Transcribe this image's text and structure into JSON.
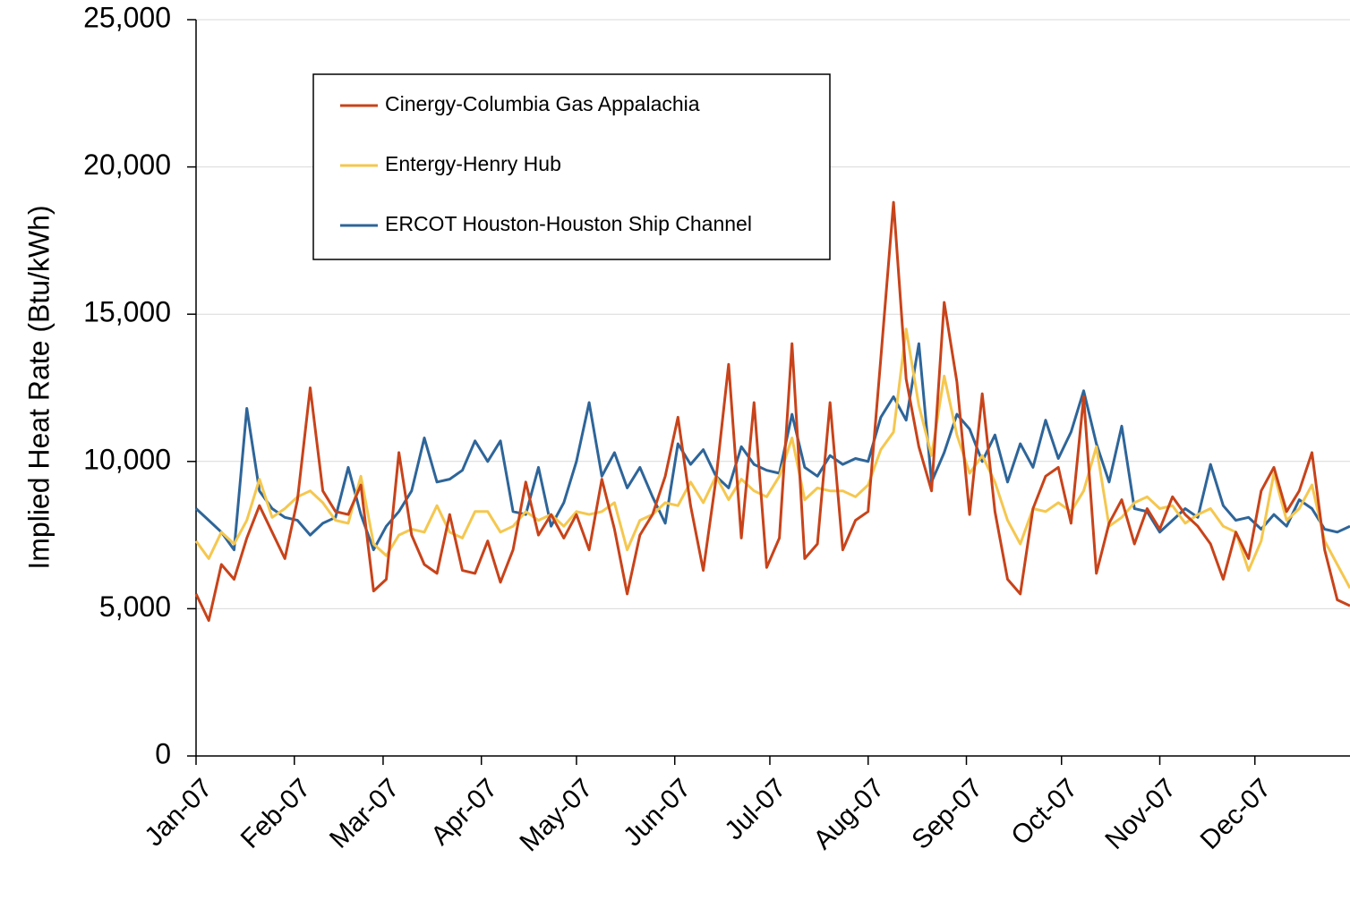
{
  "chart_data": {
    "type": "line",
    "y_label": "Implied Heat Rate (Btu/kWh)",
    "x": [
      0,
      4,
      8,
      12,
      16,
      20,
      24,
      28,
      32,
      36,
      40,
      44,
      48,
      52,
      56,
      60,
      64,
      68,
      72,
      76,
      80,
      84,
      88,
      92,
      96,
      100,
      104,
      108,
      112,
      116,
      120,
      124,
      128,
      132,
      136,
      140,
      144,
      148,
      152,
      156,
      160,
      164,
      168,
      172,
      176,
      180,
      184,
      188,
      192,
      196,
      200,
      204,
      208,
      212,
      216,
      220,
      224,
      228,
      232,
      236,
      240,
      244,
      248,
      252,
      256,
      260,
      264,
      268,
      272,
      276,
      280,
      284,
      288,
      292,
      296,
      300,
      304,
      308,
      312,
      316,
      320,
      324,
      328,
      332,
      336,
      340,
      344,
      348,
      352,
      356,
      360,
      364
    ],
    "xlim": [
      0,
      364
    ],
    "xticks": [
      {
        "value": 0,
        "label": "Jan-07"
      },
      {
        "value": 31,
        "label": "Feb-07"
      },
      {
        "value": 59,
        "label": "Mar-07"
      },
      {
        "value": 90,
        "label": "Apr-07"
      },
      {
        "value": 120,
        "label": "May-07"
      },
      {
        "value": 151,
        "label": "Jun-07"
      },
      {
        "value": 181,
        "label": "Jul-07"
      },
      {
        "value": 212,
        "label": "Aug-07"
      },
      {
        "value": 243,
        "label": "Sep-07"
      },
      {
        "value": 273,
        "label": "Oct-07"
      },
      {
        "value": 304,
        "label": "Nov-07"
      },
      {
        "value": 334,
        "label": "Dec-07"
      }
    ],
    "ylim": [
      0,
      25000
    ],
    "yticks": [
      0,
      {
        "value": 5000,
        "label": "5,000"
      },
      {
        "value": 10000,
        "label": "10,000"
      },
      {
        "value": 15000,
        "label": "15,000"
      },
      {
        "value": 20000,
        "label": "20,000"
      },
      {
        "value": 25000,
        "label": "25,000"
      }
    ],
    "grid": true,
    "series": [
      {
        "name": "Cinergy-Columbia Gas Appalachia",
        "color": "#c8431a",
        "values": [
          5500,
          4600,
          6500,
          6000,
          7400,
          8500,
          7600,
          6700,
          8700,
          12500,
          9000,
          8300,
          8200,
          9200,
          5600,
          6000,
          10300,
          7500,
          6500,
          6200,
          8200,
          6300,
          6200,
          7300,
          5900,
          7000,
          9300,
          7500,
          8200,
          7400,
          8200,
          7000,
          9400,
          7700,
          5500,
          7500,
          8200,
          9500,
          11500,
          8500,
          6300,
          9400,
          13300,
          7400,
          12000,
          6400,
          7400,
          14000,
          6700,
          7200,
          12000,
          7000,
          8000,
          8300,
          13500,
          18800,
          12800,
          10500,
          9000,
          15400,
          12700,
          8200,
          12300,
          8300,
          6000,
          5500,
          8400,
          9500,
          9800,
          7900,
          12200,
          6200,
          7900,
          8700,
          7200,
          8400,
          7700,
          8800,
          8200,
          7800,
          7200,
          6000,
          7600,
          6700,
          9000,
          9800,
          8300,
          9000,
          10300,
          7000,
          5300,
          5100
        ]
      },
      {
        "name": "Entergy-Henry Hub",
        "color": "#f5c74f",
        "values": [
          7300,
          6700,
          7600,
          7200,
          8000,
          9400,
          8100,
          8400,
          8800,
          9000,
          8600,
          8000,
          7900,
          9500,
          7200,
          6800,
          7500,
          7700,
          7600,
          8500,
          7600,
          7400,
          8300,
          8300,
          7600,
          7800,
          8300,
          8000,
          8200,
          7800,
          8300,
          8200,
          8300,
          8600,
          7000,
          8000,
          8200,
          8600,
          8500,
          9300,
          8600,
          9500,
          8700,
          9400,
          9000,
          8800,
          9500,
          10800,
          8700,
          9100,
          9000,
          9000,
          8800,
          9200,
          10400,
          11000,
          14500,
          11900,
          10200,
          12900,
          10900,
          9600,
          10200,
          9300,
          8000,
          7200,
          8400,
          8300,
          8600,
          8300,
          9000,
          10500,
          7800,
          8100,
          8600,
          8800,
          8400,
          8500,
          7900,
          8200,
          8400,
          7800,
          7600,
          6300,
          7300,
          9600,
          8000,
          8400,
          9200,
          7300,
          6500,
          5700
        ]
      },
      {
        "name": "ERCOT Houston-Houston Ship Channel",
        "color": "#2e6599",
        "values": [
          8400,
          8000,
          7600,
          7000,
          11800,
          9000,
          8400,
          8100,
          8000,
          7500,
          7900,
          8100,
          9800,
          8200,
          7000,
          7800,
          8300,
          9000,
          10800,
          9300,
          9400,
          9700,
          10700,
          10000,
          10700,
          8300,
          8200,
          9800,
          7800,
          8600,
          10000,
          12000,
          9500,
          10300,
          9100,
          9800,
          8800,
          7900,
          10600,
          9900,
          10400,
          9500,
          9100,
          10500,
          9900,
          9700,
          9600,
          11600,
          9800,
          9500,
          10200,
          9900,
          10100,
          10000,
          11500,
          12200,
          11400,
          14000,
          9300,
          10300,
          11600,
          11100,
          10000,
          10900,
          9300,
          10600,
          9800,
          11400,
          10100,
          11000,
          12400,
          10600,
          9300,
          11200,
          8400,
          8300,
          7600,
          8000,
          8400,
          8100,
          9900,
          8500,
          8000,
          8100,
          7700,
          8200,
          7800,
          8700,
          8400,
          7700,
          7600,
          7800
        ]
      }
    ]
  }
}
